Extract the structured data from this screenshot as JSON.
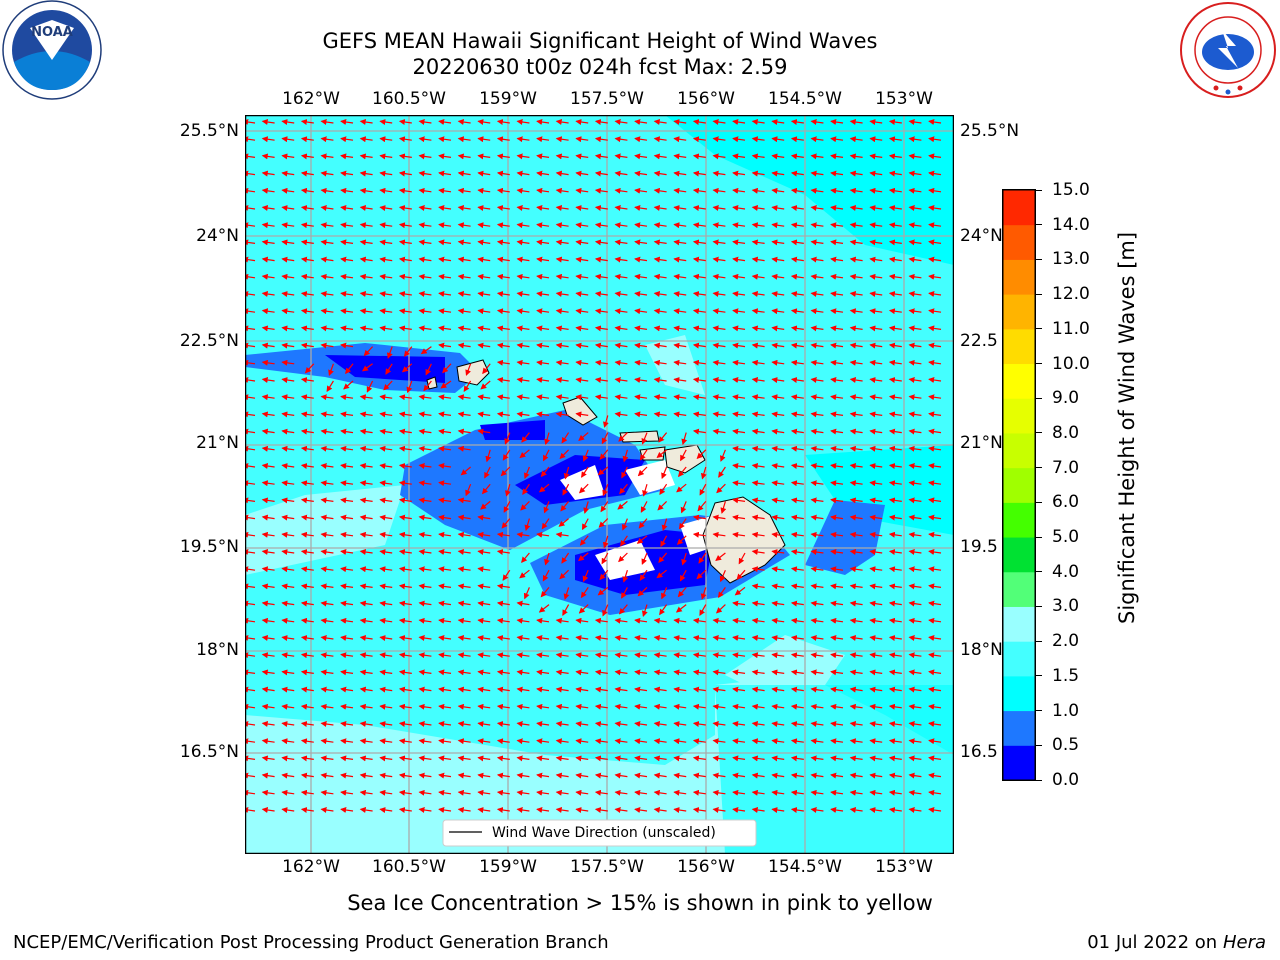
{
  "header": {
    "title_line1": "GEFS MEAN Hawaii Significant Height of Wind Waves",
    "title_line2": "20220630 t00z 024h fcst   Max: 2.59"
  },
  "logos": {
    "left": {
      "icon": "noaa-logo",
      "text": "NOAA",
      "ring_text": "NATIONAL OCEANIC AND ATMOSPHERIC ADMINISTRATION · U.S. DEPARTMENT OF COMMERCE"
    },
    "right": {
      "icon": "nws-logo",
      "ring_text": "NATIONAL WEATHER SERVICE"
    }
  },
  "map": {
    "lon_ticks": [
      "162°W",
      "160.5°W",
      "159°W",
      "157.5°W",
      "156°W",
      "154.5°W",
      "153°W"
    ],
    "lat_ticks_left": [
      "25.5°N",
      "24°N",
      "22.5°N",
      "21°N",
      "19.5°N",
      "18°N",
      "16.5°N"
    ],
    "lat_ticks_right": [
      "25.5°N",
      "24°N",
      "22.5",
      "21°N",
      "19.5",
      "18°N",
      "16.5"
    ],
    "legend_label": "Wind Wave Direction (unscaled)",
    "arrow_color": "#ff0000",
    "land_color": "#efebdc"
  },
  "colorbar": {
    "title": "Significant Height of Wind Waves [m]",
    "levels": [
      "0.0",
      "0.5",
      "1.0",
      "1.5",
      "2.0",
      "3.0",
      "4.0",
      "5.0",
      "6.0",
      "7.0",
      "8.0",
      "9.0",
      "10.0",
      "11.0",
      "12.0",
      "13.0",
      "14.0",
      "15.0"
    ],
    "colors": [
      "#0000ff",
      "#1e78ff",
      "#00ffff",
      "#44ffff",
      "#99ffff",
      "#52ff78",
      "#00e132",
      "#44ff00",
      "#a0ff00",
      "#c8ff00",
      "#e6ff00",
      "#ffff00",
      "#ffdc00",
      "#ffb400",
      "#ff8c00",
      "#ff5a00",
      "#ff2800"
    ]
  },
  "footer": {
    "note": "Sea Ice Concentration > 15% is shown in pink to yellow",
    "left": "NCEP/EMC/Verification Post Processing Product Generation Branch",
    "date": "01 Jul 2022 on",
    "host": "Hera"
  }
}
